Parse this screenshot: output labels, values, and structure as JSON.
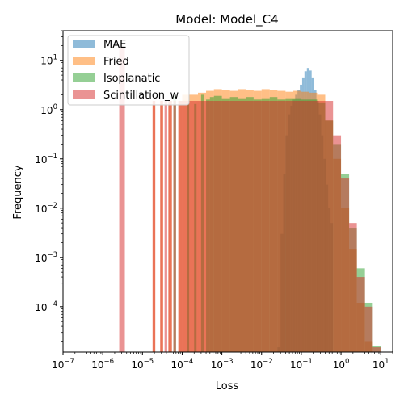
{
  "chart_data": {
    "type": "bar",
    "title": "Model: Model_C4",
    "xlabel": "Loss",
    "ylabel": "Frequency",
    "xscale": "log",
    "yscale": "log",
    "xlim": [
      1e-07,
      20
    ],
    "ylim": [
      1.2e-05,
      40
    ],
    "grid": false,
    "legend_position": "top-left",
    "x_ticks": [
      {
        "value": 1e-07,
        "mantissa": "10",
        "exp": "−7"
      },
      {
        "value": 1e-06,
        "mantissa": "10",
        "exp": "−6"
      },
      {
        "value": 1e-05,
        "mantissa": "10",
        "exp": "−5"
      },
      {
        "value": 0.0001,
        "mantissa": "10",
        "exp": "−4"
      },
      {
        "value": 0.001,
        "mantissa": "10",
        "exp": "−3"
      },
      {
        "value": 0.01,
        "mantissa": "10",
        "exp": "−2"
      },
      {
        "value": 0.1,
        "mantissa": "10",
        "exp": "−1"
      },
      {
        "value": 1,
        "mantissa": "10",
        "exp": "0"
      },
      {
        "value": 10,
        "mantissa": "10",
        "exp": "1"
      }
    ],
    "y_ticks": [
      {
        "value": 0.0001,
        "mantissa": "10",
        "exp": "−4"
      },
      {
        "value": 0.001,
        "mantissa": "10",
        "exp": "−3"
      },
      {
        "value": 0.01,
        "mantissa": "10",
        "exp": "−2"
      },
      {
        "value": 0.1,
        "mantissa": "10",
        "exp": "−1"
      },
      {
        "value": 1,
        "mantissa": "10",
        "exp": "0"
      },
      {
        "value": 10,
        "mantissa": "10",
        "exp": "1"
      }
    ],
    "series": [
      {
        "name": "MAE",
        "color": "#1f77b4",
        "opacity": 0.5,
        "bins": [
          [
            0.025,
            0.03,
            1.5e-05
          ],
          [
            0.03,
            0.035,
            0.003
          ],
          [
            0.035,
            0.04,
            0.05
          ],
          [
            0.04,
            0.046,
            0.3
          ],
          [
            0.046,
            0.053,
            0.8
          ],
          [
            0.053,
            0.061,
            1.2
          ],
          [
            0.061,
            0.07,
            1.6
          ],
          [
            0.07,
            0.08,
            2.0
          ],
          [
            0.08,
            0.092,
            2.5
          ],
          [
            0.092,
            0.105,
            3.2
          ],
          [
            0.105,
            0.12,
            4.5
          ],
          [
            0.12,
            0.138,
            6.0
          ],
          [
            0.138,
            0.158,
            7.0
          ],
          [
            0.158,
            0.182,
            6.2
          ],
          [
            0.182,
            0.21,
            4.5
          ],
          [
            0.21,
            0.24,
            2.5
          ],
          [
            0.24,
            0.275,
            1.5
          ],
          [
            0.275,
            0.316,
            0.8
          ],
          [
            0.316,
            0.36,
            0.3
          ],
          [
            0.36,
            0.415,
            0.1
          ],
          [
            0.415,
            0.475,
            0.03
          ],
          [
            0.475,
            0.545,
            0.01
          ],
          [
            0.545,
            0.625,
            0.005
          ]
        ]
      },
      {
        "name": "Fried",
        "color": "#ff7f0e",
        "opacity": 0.5,
        "bins": [
          [
            1.8e-05,
            2.1e-05,
            1.5
          ],
          [
            2.8e-05,
            3.3e-05,
            1.5
          ],
          [
            4.5e-05,
            5.5e-05,
            1.5
          ],
          [
            8e-05,
            0.0001,
            1.5
          ],
          [
            0.0001,
            0.00016,
            2.0
          ],
          [
            0.00016,
            0.00025,
            2.0
          ],
          [
            0.00025,
            0.0004,
            2.2
          ],
          [
            0.0004,
            0.00063,
            2.4
          ],
          [
            0.00063,
            0.001,
            2.6
          ],
          [
            0.001,
            0.0016,
            2.5
          ],
          [
            0.0016,
            0.0025,
            2.4
          ],
          [
            0.0025,
            0.004,
            2.6
          ],
          [
            0.004,
            0.0063,
            2.5
          ],
          [
            0.0063,
            0.01,
            2.4
          ],
          [
            0.01,
            0.016,
            2.6
          ],
          [
            0.016,
            0.025,
            2.5
          ],
          [
            0.025,
            0.04,
            2.4
          ],
          [
            0.04,
            0.063,
            2.3
          ],
          [
            0.063,
            0.1,
            2.4
          ],
          [
            0.1,
            0.16,
            2.3
          ],
          [
            0.16,
            0.25,
            2.2
          ],
          [
            0.25,
            0.4,
            2.0
          ],
          [
            0.4,
            0.63,
            0.6
          ],
          [
            0.63,
            1,
            0.1
          ],
          [
            1,
            1.6,
            0.01
          ],
          [
            1.6,
            2.5,
            0.0015
          ],
          [
            2.5,
            4,
            0.00012
          ],
          [
            4,
            6.3,
            2e-05
          ]
        ]
      },
      {
        "name": "Isoplanatic",
        "color": "#2ca02c",
        "opacity": 0.5,
        "bins": [
          [
            6e-05,
            7e-05,
            2.0
          ],
          [
            0.00013,
            0.00015,
            1.3
          ],
          [
            0.0002,
            0.00023,
            1.3
          ],
          [
            0.0003,
            0.00036,
            2.0
          ],
          [
            0.0004,
            0.0005,
            1.6
          ],
          [
            0.0005,
            0.00063,
            1.8
          ],
          [
            0.00063,
            0.001,
            1.9
          ],
          [
            0.001,
            0.0016,
            1.7
          ],
          [
            0.0016,
            0.0025,
            1.8
          ],
          [
            0.0025,
            0.004,
            1.7
          ],
          [
            0.004,
            0.0063,
            1.8
          ],
          [
            0.0063,
            0.01,
            1.6
          ],
          [
            0.01,
            0.016,
            1.7
          ],
          [
            0.016,
            0.025,
            1.8
          ],
          [
            0.025,
            0.04,
            1.6
          ],
          [
            0.04,
            0.063,
            1.7
          ],
          [
            0.063,
            0.1,
            1.7
          ],
          [
            0.1,
            0.16,
            1.6
          ],
          [
            0.16,
            0.25,
            1.6
          ],
          [
            0.25,
            0.4,
            1.4
          ],
          [
            0.4,
            0.63,
            0.6
          ],
          [
            0.63,
            1,
            0.2
          ],
          [
            1,
            1.6,
            0.05
          ],
          [
            1.6,
            2.5,
            0.004
          ],
          [
            2.5,
            4,
            0.0006
          ],
          [
            4,
            6.3,
            0.00012
          ],
          [
            6.3,
            10,
            1.6e-05
          ]
        ]
      },
      {
        "name": "Scintillation_w",
        "color": "#d62728",
        "opacity": 0.5,
        "bins": [
          [
            2.6e-06,
            3.6e-06,
            18
          ],
          [
            1.8e-05,
            2.1e-05,
            1.5
          ],
          [
            2.8e-05,
            3.3e-05,
            1.5
          ],
          [
            3.6e-05,
            4.2e-05,
            1.5
          ],
          [
            4.5e-05,
            5.5e-05,
            1.5
          ],
          [
            6e-05,
            7e-05,
            1.5
          ],
          [
            8e-05,
            0.0001,
            1.5
          ],
          [
            0.0001,
            0.00016,
            1.5
          ],
          [
            0.00016,
            0.00025,
            1.5
          ],
          [
            0.00025,
            0.0004,
            1.5
          ],
          [
            0.0004,
            0.00063,
            1.5
          ],
          [
            0.00063,
            0.001,
            1.5
          ],
          [
            0.001,
            0.0016,
            1.5
          ],
          [
            0.0016,
            0.0025,
            1.5
          ],
          [
            0.0025,
            0.004,
            1.5
          ],
          [
            0.004,
            0.0063,
            1.5
          ],
          [
            0.0063,
            0.01,
            1.5
          ],
          [
            0.01,
            0.016,
            1.5
          ],
          [
            0.016,
            0.025,
            1.5
          ],
          [
            0.025,
            0.04,
            1.5
          ],
          [
            0.04,
            0.063,
            1.5
          ],
          [
            0.063,
            0.1,
            1.5
          ],
          [
            0.1,
            0.16,
            1.5
          ],
          [
            0.16,
            0.25,
            1.5
          ],
          [
            0.25,
            0.4,
            1.5
          ],
          [
            0.4,
            0.63,
            1.5
          ],
          [
            0.63,
            1,
            0.3
          ],
          [
            1,
            1.6,
            0.04
          ],
          [
            1.6,
            2.5,
            0.005
          ],
          [
            2.5,
            4,
            0.0004
          ],
          [
            4,
            6.3,
            0.0001
          ],
          [
            6.3,
            10,
            1.5e-05
          ]
        ]
      }
    ]
  }
}
